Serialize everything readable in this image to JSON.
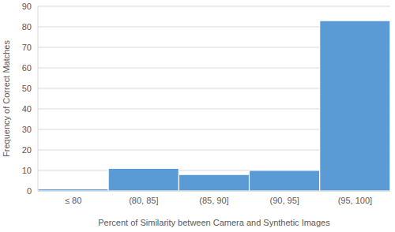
{
  "chart_data": {
    "type": "bar",
    "x_label": "Percent of Similarity between Camera and Synthetic Images",
    "y_label": "Frequency of Correct Matches",
    "categories": [
      "≤ 80",
      "(80, 85]",
      "(85, 90]",
      "(90, 95]",
      "(95, 100]"
    ],
    "values": [
      1,
      11,
      8,
      10,
      83
    ],
    "color": "#5b9bd5",
    "ylim": [
      0,
      90
    ],
    "yticks": [
      0,
      10,
      20,
      30,
      40,
      50,
      60,
      70,
      80,
      90
    ],
    "grid": true
  }
}
